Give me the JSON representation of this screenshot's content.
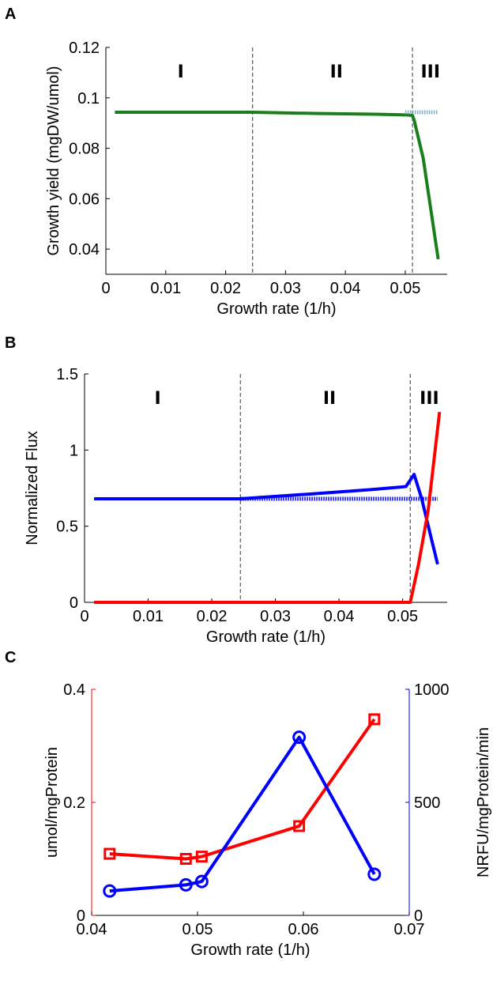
{
  "chart_data": [
    {
      "panel": "A",
      "type": "line",
      "xlabel": "Growth rate (1/h)",
      "ylabel": "Growth yield (mgDW/umol)",
      "xlim": [
        0,
        0.057
      ],
      "ylim": [
        0.03,
        0.12
      ],
      "xticks": [
        0,
        0.01,
        0.02,
        0.03,
        0.04,
        0.05
      ],
      "xticklabels": [
        "0",
        "0.01",
        "0.02",
        "0.03",
        "0.04",
        "0.05"
      ],
      "yticks": [
        0.04,
        0.06,
        0.08,
        0.1,
        0.12
      ],
      "yticklabels": [
        "0.04",
        "0.06",
        "0.08",
        "0.1",
        "0.12"
      ],
      "vlines": [
        0.0245,
        0.0512
      ],
      "regions": [
        {
          "label": "I",
          "x": 0.0125
        },
        {
          "label": "II",
          "x": 0.0385
        },
        {
          "label": "III",
          "x": 0.0542
        }
      ],
      "series": [
        {
          "color": "#1a7f1a",
          "style": "solid",
          "x": [
            0.0015,
            0.0245,
            0.035,
            0.045,
            0.0505,
            0.0512,
            0.0515,
            0.053,
            0.0555
          ],
          "y": [
            0.0943,
            0.0943,
            0.0938,
            0.0935,
            0.0932,
            0.093,
            0.091,
            0.076,
            0.036
          ]
        },
        {
          "color": "#7fb0c8",
          "style": "dotted",
          "x": [
            0.05,
            0.0555
          ],
          "y": [
            0.0943,
            0.0943
          ]
        }
      ]
    },
    {
      "panel": "B",
      "type": "line",
      "xlabel": "Growth rate (1/h)",
      "ylabel": "Normalized Flux",
      "xlim": [
        0,
        0.057
      ],
      "ylim": [
        0,
        1.5
      ],
      "xticks": [
        0,
        0.01,
        0.02,
        0.03,
        0.04,
        0.05
      ],
      "xticklabels": [
        "0",
        "0.01",
        "0.02",
        "0.03",
        "0.04",
        "0.05"
      ],
      "yticks": [
        0,
        0.5,
        1,
        1.5
      ],
      "yticklabels": [
        "0",
        "0.5",
        "1",
        "1.5"
      ],
      "vlines": [
        0.0245,
        0.0512
      ],
      "regions": [
        {
          "label": "I",
          "x": 0.0115
        },
        {
          "label": "II",
          "x": 0.0385
        },
        {
          "label": "III",
          "x": 0.0542
        }
      ],
      "series": [
        {
          "color": "#0000ff",
          "style": "dotted",
          "x": [
            0.0245,
            0.0555
          ],
          "y": [
            0.68,
            0.68
          ]
        },
        {
          "color": "#0000ff",
          "style": "solid",
          "x": [
            0.0015,
            0.0245,
            0.035,
            0.045,
            0.0505,
            0.0518,
            0.053,
            0.0545,
            0.0555
          ],
          "y": [
            0.68,
            0.68,
            0.71,
            0.74,
            0.76,
            0.84,
            0.68,
            0.42,
            0.25
          ]
        },
        {
          "color": "#ff0000",
          "style": "solid",
          "x": [
            0.0015,
            0.0512,
            0.0525,
            0.054,
            0.0558
          ],
          "y": [
            0.0,
            0.0,
            0.25,
            0.6,
            1.25
          ]
        }
      ]
    },
    {
      "panel": "C",
      "type": "line",
      "xlabel": "Growth rate (1/h)",
      "xlim": [
        0.04,
        0.07
      ],
      "xticks": [
        0.04,
        0.05,
        0.06,
        0.07
      ],
      "xticklabels": [
        "0.04",
        "0.05",
        "0.06",
        "0.07"
      ],
      "ylabel_left": "umol/mgProtein",
      "ylim_left": [
        0,
        0.4
      ],
      "yticks_left": [
        0,
        0.2,
        0.4
      ],
      "yticklabels_left": [
        "0",
        "0.2",
        "0.4"
      ],
      "left_color": "#ff0000",
      "ylabel_right": "NRFU/mgProtein/min",
      "ylim_right": [
        0,
        1000
      ],
      "yticks_right": [
        0,
        500,
        1000
      ],
      "yticklabels_right": [
        "0",
        "500",
        "1000"
      ],
      "right_color": "#0000ff",
      "series": [
        {
          "axis": "left",
          "color": "#ff0000",
          "marker": "square",
          "x": [
            0.0417,
            0.0489,
            0.0504,
            0.0596,
            0.0667
          ],
          "y": [
            0.109,
            0.1,
            0.104,
            0.158,
            0.347
          ]
        },
        {
          "axis": "right",
          "color": "#0000ff",
          "marker": "circle",
          "x": [
            0.0417,
            0.0489,
            0.0504,
            0.0596,
            0.0667
          ],
          "y": [
            108,
            135,
            150,
            788,
            182
          ]
        }
      ]
    }
  ]
}
